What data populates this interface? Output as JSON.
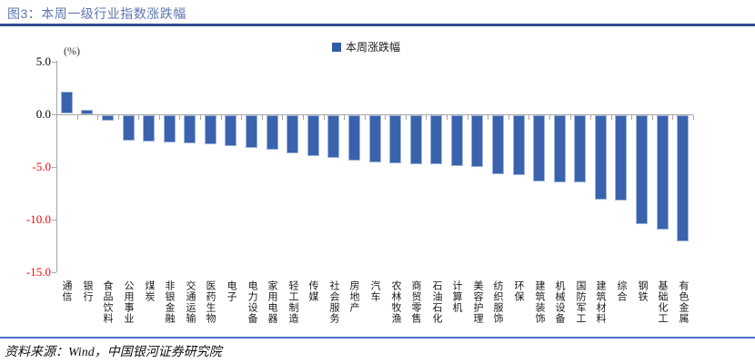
{
  "header": {
    "title": "图3：本周一级行业指数涨跌幅"
  },
  "footer": {
    "source": "资料来源：Wind，中国银河证券研究院"
  },
  "chart_data": {
    "type": "bar",
    "title": "本周一级行业指数涨跌幅",
    "unit_label": "(%)",
    "legend": [
      "本周涨跌幅"
    ],
    "legend_position": "top-center",
    "grid": false,
    "categories": [
      "通信",
      "银行",
      "食品饮料",
      "公用事业",
      "煤炭",
      "非银金融",
      "交通运输",
      "医药生物",
      "电子",
      "电力设备",
      "家用电器",
      "轻工制造",
      "传媒",
      "社会服务",
      "房地产",
      "汽车",
      "农林牧渔",
      "商贸零售",
      "石油石化",
      "计算机",
      "美容护理",
      "纺织服饰",
      "环保",
      "建筑装饰",
      "机械设备",
      "国防军工",
      "建筑材料",
      "综合",
      "钢铁",
      "基础化工",
      "有色金属"
    ],
    "values": [
      2.1,
      0.4,
      -0.5,
      -2.4,
      -2.5,
      -2.6,
      -2.7,
      -2.8,
      -2.9,
      -3.1,
      -3.3,
      -3.6,
      -3.9,
      -4.1,
      -4.3,
      -4.5,
      -4.6,
      -4.7,
      -4.7,
      -4.8,
      -4.9,
      -5.6,
      -5.7,
      -6.3,
      -6.4,
      -6.4,
      -8.0,
      -8.1,
      -10.4,
      -10.9,
      -12.0
    ],
    "xlabel": "",
    "ylabel": "(%)",
    "ylim": [
      -15.0,
      5.0
    ],
    "yticks": [
      5.0,
      0.0,
      -5.0,
      -10.0,
      -15.0
    ],
    "ytick_labels": [
      "5.0",
      "0.0",
      "-5.0",
      "-10.0",
      "-15.0"
    ],
    "colors": {
      "bar": "#3A62AD",
      "bar_border": "#9FB4DC",
      "positive_tick_label": "#000000",
      "negative_tick_label": "#FF0000",
      "axis": "#A6A6A6",
      "title": "#5D77B2",
      "title_rule": "#2E4B8F",
      "footer_rule": "#4472C4",
      "legend_swatch": "#2F5BA7"
    }
  }
}
